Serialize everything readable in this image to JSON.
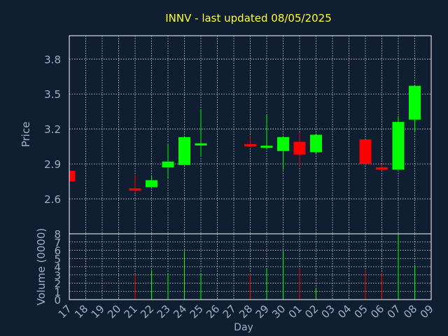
{
  "colors": {
    "background": "#0f1e30",
    "title": "#ffff33",
    "axis_text": "#9fb0c8",
    "grid": "#ffffff",
    "up": "#00ff00",
    "down": "#ff0000",
    "frame": "#ffffff"
  },
  "chart_data": {
    "type": "candlestick",
    "title": "INNV - last updated 08/05/2025",
    "xlabel": "Day",
    "ylabel_price": "Price",
    "ylabel_volume": "Volume (0000)",
    "x_ticks": [
      "17",
      "18",
      "19",
      "20",
      "21",
      "22",
      "23",
      "24",
      "25",
      "26",
      "27",
      "28",
      "29",
      "30",
      "01",
      "02",
      "03",
      "04",
      "05",
      "06",
      "07",
      "08",
      "09"
    ],
    "price_ylim": [
      2.3,
      4.0
    ],
    "price_yticks": [
      2.6,
      2.9,
      3.2,
      3.5,
      3.8
    ],
    "price_ytick_labels": [
      "2.6",
      "2.9",
      "3.2",
      "3.5",
      "3.8"
    ],
    "volume_ylim": [
      0,
      8
    ],
    "volume_yticks": [
      0,
      1,
      2,
      3,
      4,
      5,
      6,
      7,
      8
    ],
    "volume_ytick_labels": [
      "0",
      "1",
      "2",
      "3",
      "4",
      "5",
      "6",
      "7",
      "8"
    ],
    "grid": true,
    "candles": [
      {
        "x": "17",
        "open": 2.84,
        "high": 2.84,
        "low": 2.75,
        "close": 2.75,
        "volume": 0
      },
      {
        "x": "21",
        "open": 2.69,
        "high": 2.8,
        "low": 2.66,
        "close": 2.67,
        "volume": 3.0
      },
      {
        "x": "22",
        "open": 2.7,
        "high": 2.79,
        "low": 2.7,
        "close": 2.76,
        "volume": 3.6
      },
      {
        "x": "23",
        "open": 2.87,
        "high": 3.07,
        "low": 2.78,
        "close": 2.92,
        "volume": 3.2
      },
      {
        "x": "24",
        "open": 2.89,
        "high": 3.13,
        "low": 2.89,
        "close": 3.13,
        "volume": 5.9
      },
      {
        "x": "25",
        "open": 3.06,
        "high": 3.37,
        "low": 2.96,
        "close": 3.07,
        "volume": 3.1
      },
      {
        "x": "28",
        "open": 3.07,
        "high": 3.14,
        "low": 3.04,
        "close": 3.05,
        "volume": 3.2
      },
      {
        "x": "29",
        "open": 3.04,
        "high": 3.32,
        "low": 3.03,
        "close": 3.05,
        "volume": 3.7
      },
      {
        "x": "30",
        "open": 3.01,
        "high": 3.13,
        "low": 2.85,
        "close": 3.13,
        "volume": 5.8
      },
      {
        "x": "01",
        "open": 3.09,
        "high": 3.17,
        "low": 2.88,
        "close": 2.98,
        "volume": 3.8
      },
      {
        "x": "02",
        "open": 3.0,
        "high": 3.15,
        "low": 2.99,
        "close": 3.15,
        "volume": 1.4
      },
      {
        "x": "05",
        "open": 3.11,
        "high": 3.11,
        "low": 2.89,
        "close": 2.9,
        "volume": 3.5
      },
      {
        "x": "06",
        "open": 2.87,
        "high": 2.9,
        "low": 2.84,
        "close": 2.85,
        "volume": 3.3
      },
      {
        "x": "07",
        "open": 2.85,
        "high": 3.31,
        "low": 2.85,
        "close": 3.26,
        "volume": 8.0
      },
      {
        "x": "08",
        "open": 3.28,
        "high": 3.57,
        "low": 3.17,
        "close": 3.57,
        "volume": 4.2
      }
    ]
  }
}
